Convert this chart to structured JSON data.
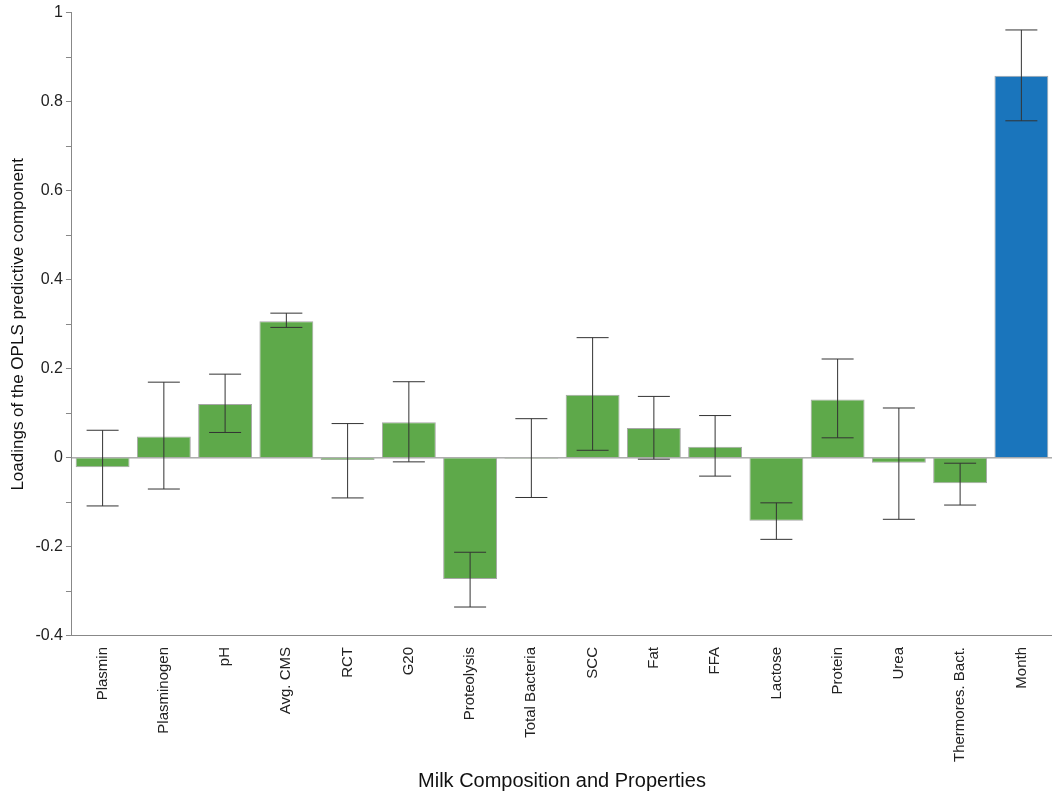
{
  "chart_data": {
    "type": "bar",
    "xlabel": "Milk Composition and Properties",
    "ylabel": "Loadings of the OPLS predictive component",
    "categories": [
      "Plasmin",
      "Plasminogen",
      "pH",
      "Avg. CMS",
      "RCT",
      "G20",
      "Proteolysis",
      "Total Bacteria",
      "SCC",
      "Fat",
      "FFA",
      "Lactose",
      "Protein",
      "Urea",
      "Thermores. Bact.",
      "Month"
    ],
    "values": [
      -0.021,
      0.048,
      0.121,
      0.307,
      -0.005,
      0.08,
      -0.272,
      -0.002,
      0.142,
      0.067,
      0.025,
      -0.141,
      0.131,
      -0.011,
      -0.057,
      0.858
    ],
    "errors": [
      [
        -0.108,
        0.062
      ],
      [
        -0.07,
        0.17
      ],
      [
        0.057,
        0.188
      ],
      [
        0.293,
        0.325
      ],
      [
        -0.09,
        0.077
      ],
      [
        -0.009,
        0.171
      ],
      [
        -0.335,
        -0.212
      ],
      [
        -0.089,
        0.088
      ],
      [
        0.017,
        0.27
      ],
      [
        -0.003,
        0.138
      ],
      [
        -0.041,
        0.095
      ],
      [
        -0.183,
        -0.101
      ],
      [
        0.045,
        0.222
      ],
      [
        -0.138,
        0.112
      ],
      [
        -0.106,
        -0.012
      ],
      [
        0.757,
        0.961
      ]
    ],
    "colors": [
      "#5ea94a",
      "#5ea94a",
      "#5ea94a",
      "#5ea94a",
      "#5ea94a",
      "#5ea94a",
      "#5ea94a",
      "#5ea94a",
      "#5ea94a",
      "#5ea94a",
      "#5ea94a",
      "#5ea94a",
      "#5ea94a",
      "#5ea94a",
      "#5ea94a",
      "#1a75bc"
    ],
    "ylim": [
      -0.4,
      1
    ],
    "yticks": [
      -0.4,
      {
        "value": -0.3,
        "label": null
      },
      -0.2,
      {
        "value": -0.1,
        "label": null
      },
      0,
      {
        "value": 0.1,
        "label": null
      },
      0.2,
      {
        "value": 0.3,
        "label": null
      },
      0.4,
      {
        "value": 0.5,
        "label": null
      },
      0.6,
      {
        "value": 0.7,
        "label": null
      },
      0.8,
      {
        "value": 0.9,
        "label": null
      },
      1
    ],
    "ref_lines": [
      {
        "axis": "y",
        "value": 0,
        "color": "#808080"
      }
    ],
    "legend": false
  }
}
